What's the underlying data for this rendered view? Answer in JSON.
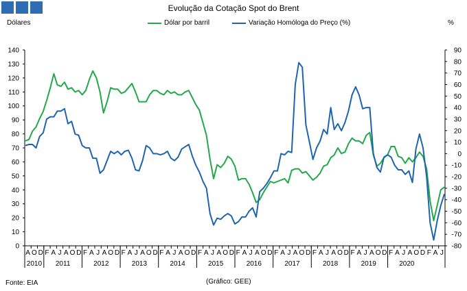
{
  "header": {
    "title": "Evolução da Cotação Spot do Brent",
    "left_unit": "Dólares",
    "right_unit": "%",
    "squares_color": "#2e6db4"
  },
  "footer": {
    "source": "Fonte: EIA",
    "graphic": "(Gráfico: GEE)"
  },
  "chart_data": {
    "type": "line",
    "x_month_letters": [
      "A",
      "O",
      "D",
      "F",
      "A",
      "J",
      "A",
      "O",
      "D",
      "F",
      "A",
      "J",
      "A",
      "O",
      "D",
      "F",
      "A",
      "J",
      "A",
      "O",
      "D",
      "F",
      "A",
      "J",
      "A",
      "O",
      "D",
      "F",
      "A",
      "J",
      "A",
      "O",
      "D",
      "F",
      "A",
      "J",
      "A",
      "O",
      "D",
      "F",
      "A",
      "J",
      "A",
      "O",
      "D",
      "F",
      "A",
      "J",
      "A",
      "O",
      "D",
      "F",
      "A",
      "J",
      "A",
      "O",
      "D",
      "F",
      "A",
      "J",
      "A",
      "O",
      "D",
      "F",
      "A",
      "J"
    ],
    "x_year_labels": [
      "2010",
      "2011",
      "2012",
      "2013",
      "2014",
      "2015",
      "2016",
      "2017",
      "2018",
      "2019",
      "2020"
    ],
    "y_left": {
      "min": 0,
      "max": 140,
      "ticks": [
        0,
        10,
        20,
        30,
        40,
        50,
        60,
        70,
        80,
        90,
        100,
        110,
        120,
        130,
        140
      ]
    },
    "y_right": {
      "min": -80,
      "max": 90,
      "ticks": [
        -80,
        -70,
        -60,
        -50,
        -40,
        -30,
        -20,
        -10,
        0,
        10,
        20,
        30,
        40,
        50,
        60,
        70,
        80,
        90
      ]
    },
    "grid": false,
    "legend_position": "top",
    "series": [
      {
        "name": "Dólar por barril",
        "axis": "left",
        "color": "#21a84a",
        "values": [
          75,
          76,
          82,
          85,
          91,
          96,
          104,
          113,
          123,
          115,
          114,
          117,
          112,
          113,
          110,
          111,
          108,
          111,
          119,
          125,
          120,
          110,
          95,
          103,
          113,
          112,
          112,
          109,
          110,
          113,
          116,
          110,
          103,
          103,
          103,
          108,
          111,
          111,
          109,
          108,
          111,
          109,
          110,
          108,
          108,
          110,
          111,
          106,
          101,
          97,
          88,
          79,
          62,
          48,
          58,
          56,
          59,
          64,
          62,
          57,
          47,
          48,
          48,
          44,
          38,
          31,
          33,
          38,
          42,
          46,
          45,
          46,
          47,
          48,
          45,
          54,
          55,
          55,
          52,
          53,
          50,
          47,
          49,
          52,
          57,
          58,
          63,
          65,
          70,
          66,
          67,
          73,
          77,
          75,
          75,
          73,
          79,
          81,
          65,
          57,
          59,
          63,
          65,
          71,
          71,
          64,
          63,
          59,
          63,
          60,
          63,
          67,
          64,
          55,
          32,
          18,
          29,
          40,
          42
        ]
      },
      {
        "name": "Variação Homóloga do Preço (%)",
        "axis": "right",
        "color": "#1c64ad",
        "values": [
          7,
          8,
          8,
          5,
          15,
          18,
          30,
          32,
          32,
          37,
          37,
          39,
          26,
          28,
          17,
          16,
          7,
          5,
          5,
          -4,
          -4,
          -17,
          -14,
          -6,
          2,
          0,
          2,
          -1,
          2,
          3,
          -4,
          -14,
          -15,
          -6,
          7,
          5,
          0,
          0,
          -1,
          0,
          2,
          -4,
          -6,
          -3,
          4,
          6,
          8,
          -2,
          -10,
          -16,
          -24,
          -30,
          -52,
          -62,
          -56,
          -57,
          -54,
          -52,
          -54,
          -61,
          -59,
          -55,
          -55,
          -50,
          -47,
          -55,
          -33,
          -30,
          -26,
          -21,
          -15,
          -15,
          0,
          -1,
          2,
          1,
          60,
          79,
          75,
          25,
          10,
          -5,
          5,
          11,
          21,
          17,
          40,
          21,
          26,
          20,
          27,
          37,
          51,
          58,
          51,
          39,
          40,
          40,
          0,
          -12,
          -16,
          -3,
          -1,
          -3,
          -10,
          -14,
          -14,
          -18,
          -15,
          -25,
          4,
          17,
          5,
          -20,
          -60,
          -75,
          -58,
          -45,
          -35
        ]
      }
    ]
  }
}
